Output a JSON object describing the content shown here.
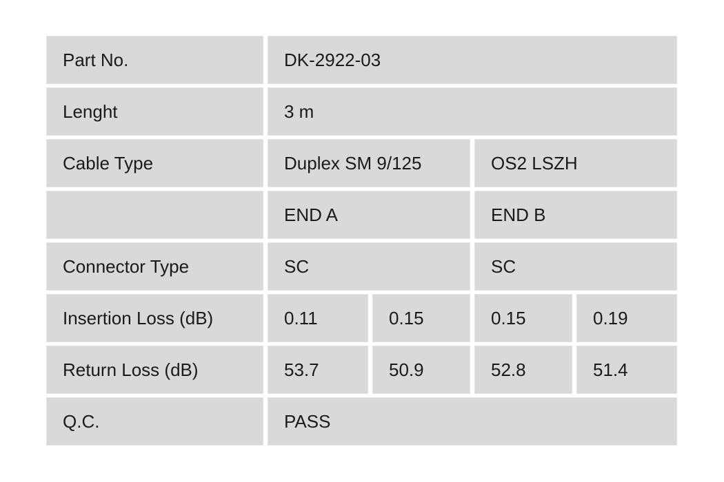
{
  "table": {
    "rows": [
      {
        "label": "Part No.",
        "cells": [
          {
            "text": "DK-2922-03",
            "span": 4
          }
        ]
      },
      {
        "label": "Lenght",
        "cells": [
          {
            "text": "3 m",
            "span": 4
          }
        ]
      },
      {
        "label": "Cable Type",
        "cells": [
          {
            "text": "Duplex SM 9/125",
            "span": 2
          },
          {
            "text": "OS2 LSZH",
            "span": 2
          }
        ]
      },
      {
        "label": "",
        "cells": [
          {
            "text": "END A",
            "span": 2
          },
          {
            "text": "END B",
            "span": 2
          }
        ]
      },
      {
        "label": "Connector Type",
        "cells": [
          {
            "text": "SC",
            "span": 2
          },
          {
            "text": "SC",
            "span": 2
          }
        ]
      },
      {
        "label": "Insertion Loss (dB)",
        "cells": [
          {
            "text": "0.11",
            "span": 1
          },
          {
            "text": "0.15",
            "span": 1
          },
          {
            "text": "0.15",
            "span": 1
          },
          {
            "text": "0.19",
            "span": 1
          }
        ]
      },
      {
        "label": "Return Loss (dB)",
        "cells": [
          {
            "text": "53.7",
            "span": 1
          },
          {
            "text": "50.9",
            "span": 1
          },
          {
            "text": "52.8",
            "span": 1
          },
          {
            "text": "51.4",
            "span": 1
          }
        ]
      },
      {
        "label": "Q.C.",
        "cells": [
          {
            "text": "PASS",
            "span": 4
          }
        ]
      }
    ],
    "colors": {
      "page_bg": "#ffffff",
      "cell_bg": "#d9d9d9",
      "cell_edge": "#e3e3e3",
      "text": "#1a1a1a"
    }
  }
}
